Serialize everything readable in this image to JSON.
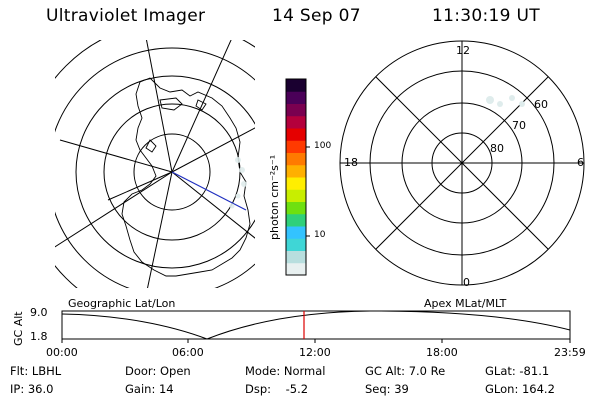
{
  "header": {
    "instrument": "Ultraviolet Imager",
    "date": "14 Sep 07",
    "time": "11:30:19 UT"
  },
  "geo_map": {
    "label": "Geographic Lat/Lon"
  },
  "colorbar": {
    "label": "photon cm⁻²s⁻¹",
    "ticks": [
      "100",
      "10"
    ],
    "colors": [
      "#e8f0f0",
      "#b8dede",
      "#3fd6d6",
      "#33c3ff",
      "#2fd07a",
      "#6ee010",
      "#c8ee00",
      "#ffee00",
      "#ffb000",
      "#ff7a00",
      "#ff3a00",
      "#e50000",
      "#b4003c",
      "#7a0050",
      "#4a0058",
      "#1a0030"
    ]
  },
  "polar": {
    "label": "Apex MLat/MLT",
    "mlt_labels": {
      "top": "12",
      "right": "6",
      "bottom": "0",
      "left": "18"
    },
    "lat_labels": [
      "60",
      "70",
      "80"
    ]
  },
  "gc_alt_plot": {
    "ylabel": "GC Alt",
    "ytick_top": "9.0",
    "ytick_bottom": "1.8",
    "xticks": [
      "00:00",
      "06:00",
      "12:00",
      "18:00",
      "23:59"
    ],
    "marker_color": "#dd0000",
    "marker_time": "11:30"
  },
  "status": {
    "flt": "Flt: LBHL",
    "ip": "IP: 36.0",
    "door": "Door: Open",
    "gain": "Gain: 14",
    "mode": "Mode: Normal",
    "dsp": "Dsp:    -5.2",
    "gc_alt": "GC Alt: 7.0 Re",
    "seq": "Seq: 39",
    "glat": "GLat: -81.1",
    "glon": "GLon: 164.2"
  }
}
